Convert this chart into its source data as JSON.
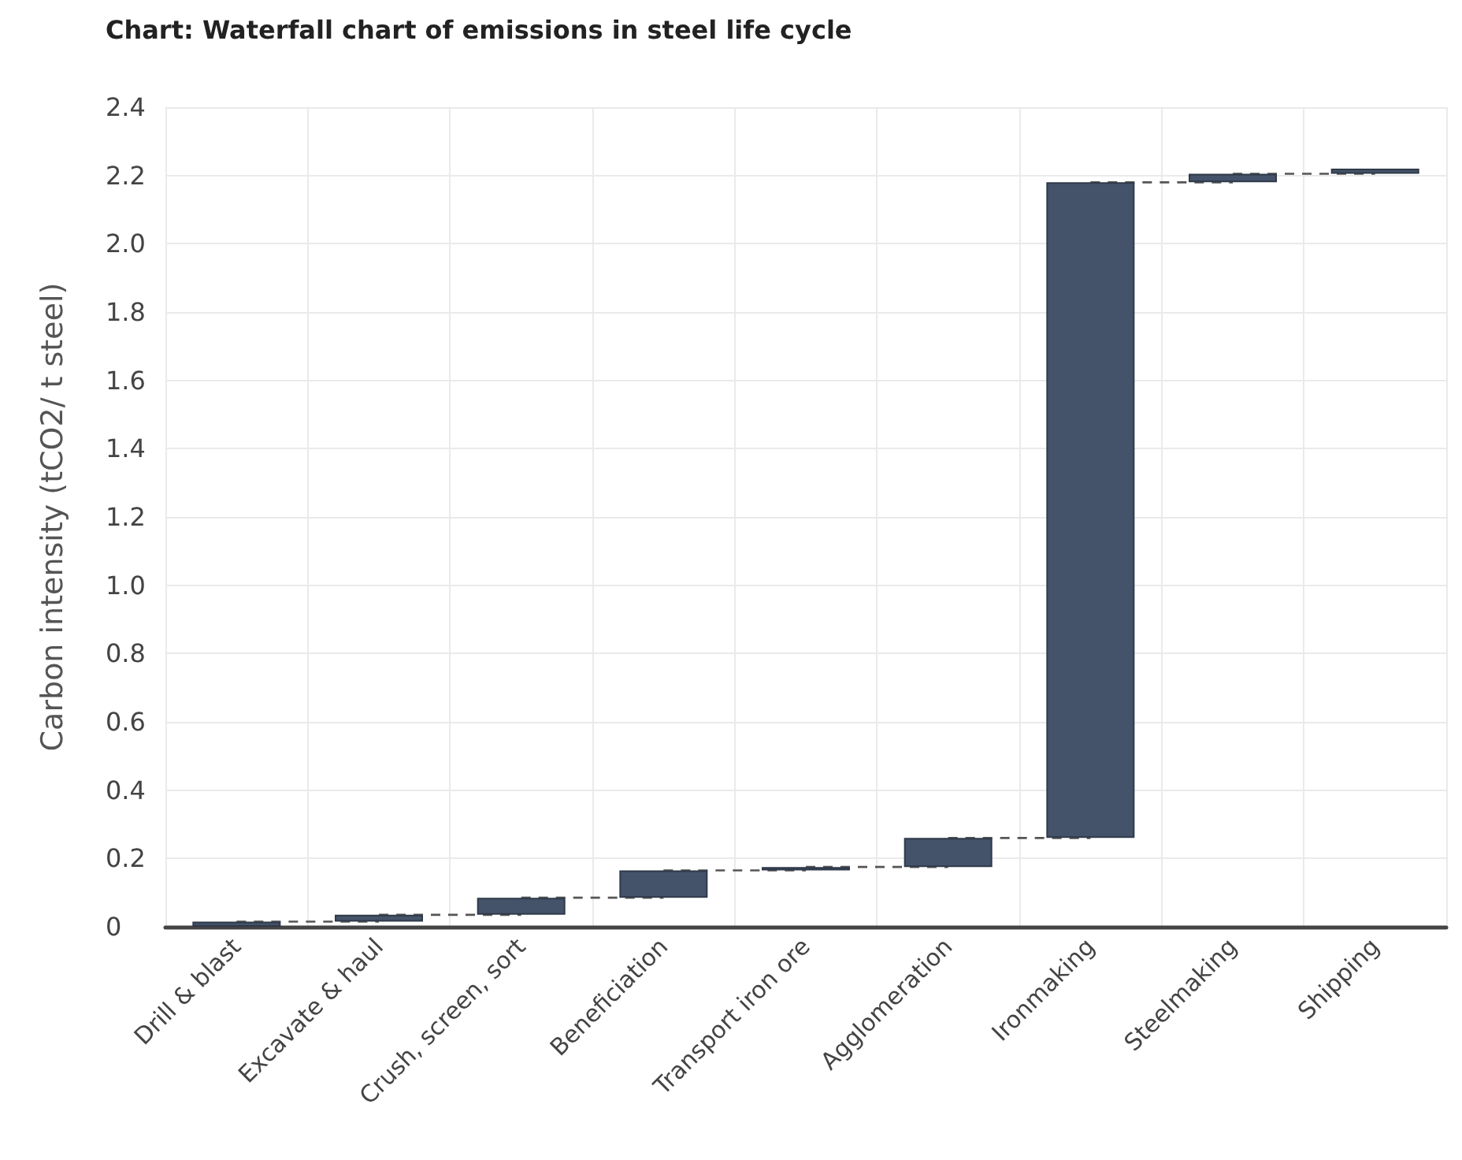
{
  "chart_data": {
    "type": "bar",
    "title": "Chart: Waterfall chart of emissions in steel life cycle",
    "ylabel": "Carbon intensity (tCO2/ t steel)",
    "categories": [
      "Drill & blast",
      "Excavate & haul",
      "Crush, screen, sort",
      "Beneficiation",
      "Transport iron ore",
      "Agglomeration",
      "Ironmaking",
      "Steelmaking",
      "Shipping"
    ],
    "series": [
      {
        "color": "#445369",
        "base": [
          0,
          0.015,
          0.035,
          0.085,
          0.165,
          0.175,
          0.26,
          2.18,
          2.205
        ],
        "values": [
          0.015,
          0.02,
          0.05,
          0.08,
          0.01,
          0.085,
          1.92,
          0.025,
          0.015
        ]
      },
      {
        "type": "line",
        "color": "#555555",
        "line_style": "dashed",
        "marker": "none",
        "x": [
          "Drill & blast",
          "Excavate & haul"
        ],
        "values": [
          0.015,
          0.015
        ]
      },
      {
        "type": "line",
        "color": "#555555",
        "line_style": "dashed",
        "marker": "none",
        "x": [
          "Excavate & haul",
          "Crush, screen, sort"
        ],
        "values": [
          0.035,
          0.035
        ]
      },
      {
        "type": "line",
        "color": "#555555",
        "line_style": "dashed",
        "marker": "none",
        "x": [
          "Crush, screen, sort",
          "Beneficiation"
        ],
        "values": [
          0.085,
          0.085
        ]
      },
      {
        "type": "line",
        "color": "#555555",
        "line_style": "dashed",
        "marker": "none",
        "x": [
          "Beneficiation",
          "Transport iron ore"
        ],
        "values": [
          0.165,
          0.165
        ]
      },
      {
        "type": "line",
        "color": "#555555",
        "line_style": "dashed",
        "marker": "none",
        "x": [
          "Transport iron ore",
          "Agglomeration"
        ],
        "values": [
          0.175,
          0.175
        ]
      },
      {
        "type": "line",
        "color": "#555555",
        "line_style": "dashed",
        "marker": "none",
        "x": [
          "Agglomeration",
          "Ironmaking"
        ],
        "values": [
          0.26,
          0.26
        ]
      },
      {
        "type": "line",
        "color": "#555555",
        "line_style": "dashed",
        "marker": "none",
        "x": [
          "Ironmaking",
          "Steelmaking"
        ],
        "values": [
          2.18,
          2.18
        ]
      },
      {
        "type": "line",
        "color": "#555555",
        "line_style": "dashed",
        "marker": "none",
        "x": [
          "Steelmaking",
          "Shipping"
        ],
        "values": [
          2.205,
          2.205
        ]
      }
    ],
    "ylim": [
      0,
      2.4
    ],
    "yticks": [
      0,
      0.2,
      0.4,
      0.6,
      0.8,
      {
        "value": 1,
        "label": "1.0"
      },
      1.2,
      1.4,
      1.6,
      1.8,
      {
        "value": 2,
        "label": "2.0"
      },
      2.2,
      2.4
    ],
    "grid": true
  }
}
